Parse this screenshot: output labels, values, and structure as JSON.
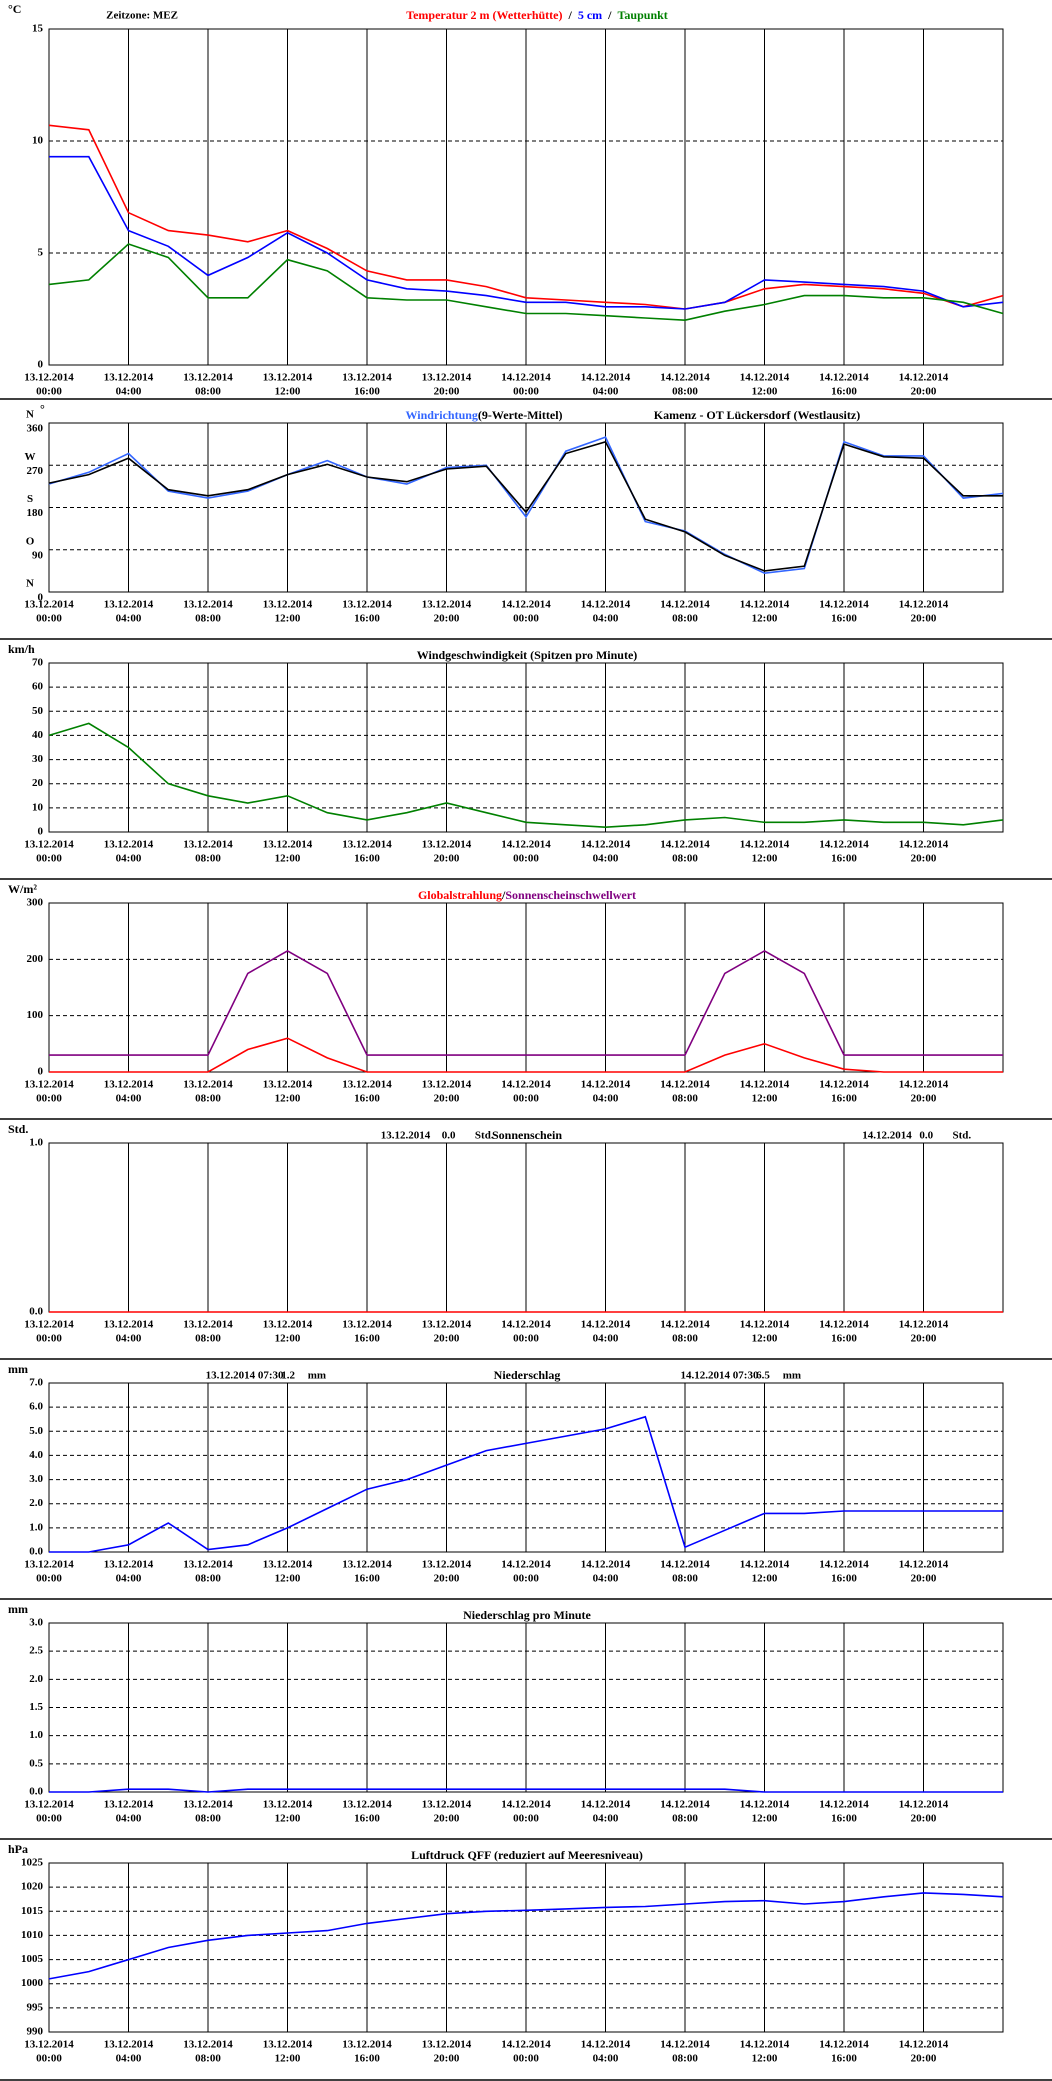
{
  "time_axis": {
    "xlim": [
      0,
      48
    ],
    "x": [
      0,
      2,
      4,
      6,
      8,
      10,
      12,
      14,
      16,
      18,
      20,
      22,
      24,
      26,
      28,
      30,
      32,
      34,
      36,
      38,
      40,
      42,
      44,
      46,
      48
    ],
    "xticks": [
      {
        "value": 0,
        "label": [
          "13.12.2014",
          "00:00"
        ]
      },
      {
        "value": 4,
        "label": [
          "13.12.2014",
          "04:00"
        ]
      },
      {
        "value": 8,
        "label": [
          "13.12.2014",
          "08:00"
        ]
      },
      {
        "value": 12,
        "label": [
          "13.12.2014",
          "12:00"
        ]
      },
      {
        "value": 16,
        "label": [
          "13.12.2014",
          "16:00"
        ]
      },
      {
        "value": 20,
        "label": [
          "13.12.2014",
          "20:00"
        ]
      },
      {
        "value": 24,
        "label": [
          "14.12.2014",
          "00:00"
        ]
      },
      {
        "value": 28,
        "label": [
          "14.12.2014",
          "04:00"
        ]
      },
      {
        "value": 32,
        "label": [
          "14.12.2014",
          "08:00"
        ]
      },
      {
        "value": 36,
        "label": [
          "14.12.2014",
          "12:00"
        ]
      },
      {
        "value": 40,
        "label": [
          "14.12.2014",
          "16:00"
        ]
      },
      {
        "value": 44,
        "label": [
          "14.12.2014",
          "20:00"
        ]
      }
    ]
  },
  "chart_data": [
    {
      "type": "line",
      "unit": "°C",
      "annotations": [
        "Zeitzone: MEZ"
      ],
      "legend_separator": "/",
      "ylim": [
        0,
        15
      ],
      "yticks": [
        0,
        5,
        10,
        15
      ],
      "series": [
        {
          "name": "Temperatur 2 m (Wetterhütte)",
          "color": "#ff0000",
          "values": [
            10.7,
            10.5,
            6.8,
            6.0,
            5.8,
            5.5,
            6.0,
            5.2,
            4.2,
            3.8,
            3.8,
            3.5,
            3.0,
            2.9,
            2.8,
            2.7,
            2.5,
            2.8,
            3.4,
            3.6,
            3.5,
            3.4,
            3.2,
            2.6,
            3.1
          ]
        },
        {
          "name": "5 cm",
          "color": "#0000ff",
          "values": [
            9.3,
            9.3,
            6.0,
            5.3,
            4.0,
            4.8,
            5.9,
            5.0,
            3.8,
            3.4,
            3.3,
            3.1,
            2.8,
            2.8,
            2.6,
            2.6,
            2.5,
            2.8,
            3.8,
            3.7,
            3.6,
            3.5,
            3.3,
            2.6,
            2.8
          ]
        },
        {
          "name": "Taupunkt",
          "color": "#008000",
          "values": [
            3.6,
            3.8,
            5.4,
            4.8,
            3.0,
            3.0,
            4.7,
            4.2,
            3.0,
            2.9,
            2.9,
            2.6,
            2.3,
            2.3,
            2.2,
            2.1,
            2.0,
            2.4,
            2.7,
            3.1,
            3.1,
            3.0,
            3.0,
            2.8,
            2.3
          ]
        }
      ]
    },
    {
      "type": "line",
      "unit": "°",
      "title": "Kamenz - OT Lückersdorf (Westlausitz)",
      "ylim": [
        0,
        360
      ],
      "yticks": [
        0,
        90,
        180,
        270,
        360
      ],
      "ytick_compass": [
        "N",
        "O",
        "S",
        "W",
        "N"
      ],
      "series": [
        {
          "name": "Windrichtung",
          "color": "#3366ff",
          "values": [
            230,
            255,
            295,
            215,
            200,
            215,
            250,
            280,
            245,
            230,
            265,
            270,
            160,
            300,
            330,
            150,
            130,
            80,
            40,
            50,
            320,
            290,
            290,
            200,
            210
          ]
        },
        {
          "name": "(9-Werte-Mittel)",
          "color": "#000000",
          "values": [
            232,
            250,
            285,
            218,
            205,
            218,
            250,
            272,
            245,
            235,
            262,
            268,
            170,
            295,
            320,
            155,
            128,
            78,
            45,
            55,
            315,
            288,
            285,
            205,
            205
          ]
        }
      ]
    },
    {
      "type": "line",
      "unit": "km/h",
      "title": "Windgeschwindigkeit (Spitzen pro Minute)",
      "ylim": [
        0,
        70
      ],
      "yticks": [
        0,
        10,
        20,
        30,
        40,
        50,
        60,
        70
      ],
      "series": [
        {
          "name": null,
          "color": "#008000",
          "values": [
            40,
            45,
            35,
            20,
            15,
            12,
            15,
            8,
            5,
            8,
            12,
            8,
            4,
            3,
            2,
            3,
            5,
            6,
            4,
            4,
            5,
            4,
            4,
            3,
            5
          ]
        }
      ]
    },
    {
      "type": "line",
      "unit": "W/m²",
      "legend_separator": "/",
      "ylim": [
        0,
        300
      ],
      "yticks": [
        0,
        100,
        200,
        300
      ],
      "series": [
        {
          "name": "Globalstrahlung",
          "color": "#ff0000",
          "values": [
            0,
            0,
            0,
            0,
            0,
            40,
            60,
            25,
            0,
            0,
            0,
            0,
            0,
            0,
            0,
            0,
            0,
            30,
            50,
            25,
            5,
            0,
            0,
            0,
            0
          ]
        },
        {
          "name": "Sonnenscheinschwellwert",
          "color": "#800080",
          "values": [
            30,
            30,
            30,
            30,
            30,
            175,
            215,
            175,
            30,
            30,
            30,
            30,
            30,
            30,
            30,
            30,
            30,
            175,
            215,
            175,
            30,
            30,
            30,
            30,
            30
          ]
        }
      ]
    },
    {
      "type": "line",
      "unit": "Std.",
      "title": "Sonnenschein",
      "annotations": [
        "13.12.2014",
        "0.0",
        "Std.",
        "14.12.2014",
        "0.0",
        "Std."
      ],
      "ylim": [
        0,
        1
      ],
      "yticks": [
        {
          "value": 0,
          "label": "0.0"
        },
        {
          "value": 1,
          "label": "1.0"
        }
      ],
      "series": [
        {
          "name": null,
          "color": "#ff0000",
          "values": [
            0,
            0,
            0,
            0,
            0,
            0,
            0,
            0,
            0,
            0,
            0,
            0,
            0,
            0,
            0,
            0,
            0,
            0,
            0,
            0,
            0,
            0,
            0,
            0,
            0
          ]
        }
      ]
    },
    {
      "type": "line",
      "unit": "mm",
      "title": "Niederschlag",
      "annotations": [
        "13.12.2014 07:30",
        "1.2",
        "mm",
        "14.12.2014 07:30",
        "6.5",
        "mm"
      ],
      "ylim": [
        0,
        7
      ],
      "yticks": [
        {
          "value": 0,
          "label": "0.0"
        },
        {
          "value": 1,
          "label": "1.0"
        },
        {
          "value": 2,
          "label": "2.0"
        },
        {
          "value": 3,
          "label": "3.0"
        },
        {
          "value": 4,
          "label": "4.0"
        },
        {
          "value": 5,
          "label": "5.0"
        },
        {
          "value": 6,
          "label": "6.0"
        },
        {
          "value": 7,
          "label": "7.0"
        }
      ],
      "series": [
        {
          "name": null,
          "color": "#0000ff",
          "values": [
            0,
            0,
            0.3,
            1.2,
            0.1,
            0.3,
            1.0,
            1.8,
            2.6,
            3.0,
            3.6,
            4.2,
            4.5,
            4.8,
            5.1,
            5.6,
            0.2,
            0.9,
            1.6,
            1.6,
            1.7,
            1.7,
            1.7,
            1.7,
            1.7
          ]
        }
      ]
    },
    {
      "type": "line",
      "unit": "mm",
      "title": "Niederschlag pro Minute",
      "ylim": [
        0,
        3
      ],
      "yticks": [
        {
          "value": 0,
          "label": "0.0"
        },
        {
          "value": 0.5,
          "label": "0.5"
        },
        {
          "value": 1,
          "label": "1.0"
        },
        {
          "value": 1.5,
          "label": "1.5"
        },
        {
          "value": 2,
          "label": "2.0"
        },
        {
          "value": 2.5,
          "label": "2.5"
        },
        {
          "value": 3,
          "label": "3.0"
        }
      ],
      "series": [
        {
          "name": null,
          "color": "#0000ff",
          "values": [
            0,
            0,
            0.05,
            0.05,
            0,
            0.05,
            0.05,
            0.05,
            0.05,
            0.05,
            0.05,
            0.05,
            0.05,
            0.05,
            0.05,
            0.05,
            0.05,
            0.05,
            0,
            0,
            0,
            0,
            0,
            0,
            0
          ]
        }
      ]
    },
    {
      "type": "line",
      "unit": "hPa",
      "title": "Luftdruck QFF (reduziert auf Meeresniveau)",
      "ylim": [
        990,
        1025
      ],
      "yticks": [
        990,
        995,
        1000,
        1005,
        1010,
        1015,
        1020,
        1025
      ],
      "series": [
        {
          "name": null,
          "color": "#0000ff",
          "values": [
            1001,
            1002.5,
            1005,
            1007.5,
            1009,
            1010,
            1010.5,
            1011,
            1012.5,
            1013.5,
            1014.5,
            1015,
            1015.2,
            1015.5,
            1015.8,
            1016,
            1016.5,
            1017,
            1017.2,
            1016.5,
            1017,
            1018,
            1018.8,
            1018.5,
            1018
          ]
        }
      ]
    }
  ]
}
